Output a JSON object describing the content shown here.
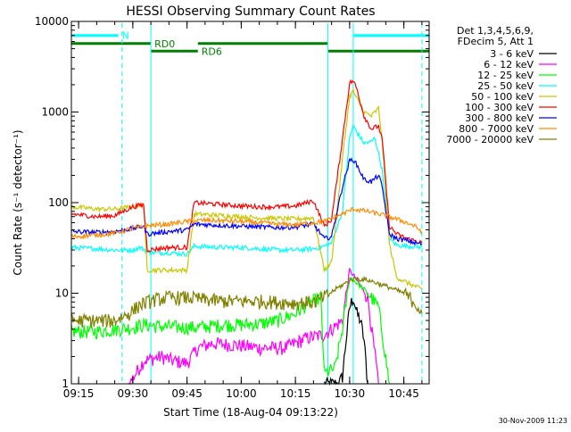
{
  "chart_data": {
    "type": "line",
    "title": "HESSI Observing Summary Count Rates",
    "xlabel": "Start Time (18-Aug-04 09:13:22)",
    "ylabel": "Count Rate (s⁻¹ detector⁻¹)",
    "y_scale": "log",
    "ylim": [
      1,
      10000
    ],
    "xlim": [
      "09:13",
      "10:52"
    ],
    "grid": false,
    "x_ticks": [
      "09:15",
      "09:30",
      "09:45",
      "10:00",
      "10:15",
      "10:30",
      "10:45"
    ],
    "y_ticks": [
      "1",
      "10",
      "100",
      "1000",
      "10000"
    ],
    "legend_header": [
      "Det 1,3,4,5,6,9,",
      "FDecim 5, Att 1"
    ],
    "legend_position": "right",
    "series": [
      {
        "name": "3 - 6 keV",
        "color": "#000000",
        "x": [
          "10:23",
          "10:27",
          "10:28",
          "10:29",
          "10:30",
          "10:31",
          "10:32",
          "10:33",
          "10:34",
          "10:35"
        ],
        "y": [
          1,
          1,
          1.2,
          3,
          7,
          9,
          6,
          5,
          3,
          1
        ]
      },
      {
        "name": "6 - 12 keV",
        "color": "#ff00ff",
        "x": [
          "09:29",
          "09:33",
          "09:38",
          "09:41",
          "09:45",
          "09:48",
          "09:52",
          "09:58",
          "10:05",
          "10:12",
          "10:18",
          "10:23",
          "10:28",
          "10:30",
          "10:32",
          "10:35",
          "10:38"
        ],
        "y": [
          1,
          1.8,
          2,
          1.8,
          1.7,
          2.5,
          2.8,
          2.7,
          2.5,
          2.5,
          3.2,
          3.5,
          5,
          18,
          14,
          9,
          1
        ]
      },
      {
        "name": "12 - 25 keV",
        "color": "#00ff00",
        "x": [
          "09:13",
          "09:20",
          "09:25",
          "09:30",
          "09:33",
          "09:38",
          "09:45",
          "09:48",
          "09:55",
          "10:00",
          "10:05",
          "10:10",
          "10:15",
          "10:18",
          "10:22",
          "10:23",
          "10:26",
          "10:28",
          "10:30",
          "10:32",
          "10:34",
          "10:36",
          "10:38",
          "10:41"
        ],
        "y": [
          3.8,
          3.8,
          4,
          4.2,
          4.5,
          4.3,
          4.2,
          4.2,
          4.5,
          4.5,
          4.6,
          5,
          6,
          7.5,
          9,
          1.3,
          1.5,
          4,
          15,
          13,
          11,
          9,
          7,
          1
        ]
      },
      {
        "name": "25 - 50 keV",
        "color": "#00ffff",
        "x": [
          "09:13",
          "09:20",
          "09:25",
          "09:30",
          "09:32",
          "09:35",
          "09:40",
          "09:45",
          "09:47",
          "09:55",
          "10:00",
          "10:05",
          "10:10",
          "10:15",
          "10:20",
          "10:23",
          "10:25",
          "10:28",
          "10:30",
          "10:31",
          "10:32",
          "10:34",
          "10:36",
          "10:37",
          "10:39",
          "10:41",
          "10:43",
          "10:46",
          "10:48",
          "10:50"
        ],
        "y": [
          32,
          31,
          30,
          30,
          32,
          28,
          28,
          27,
          33,
          32,
          32,
          31,
          30,
          30,
          31,
          33,
          36,
          80,
          520,
          700,
          600,
          450,
          470,
          520,
          230,
          40,
          34,
          33,
          33,
          32
        ]
      },
      {
        "name": "50 - 100 keV",
        "color": "#c8c800",
        "x": [
          "09:13",
          "09:20",
          "09:25",
          "09:30",
          "09:33",
          "09:34",
          "09:40",
          "09:45",
          "09:47",
          "09:55",
          "10:00",
          "10:05",
          "10:10",
          "10:15",
          "10:20",
          "10:23",
          "10:25",
          "10:28",
          "10:30",
          "10:31",
          "10:32",
          "10:34",
          "10:36",
          "10:38",
          "10:39",
          "10:41",
          "10:43",
          "10:46",
          "10:48",
          "10:50"
        ],
        "y": [
          90,
          85,
          85,
          90,
          95,
          18,
          18,
          18,
          75,
          72,
          70,
          68,
          67,
          66,
          68,
          18,
          22,
          300,
          1500,
          1700,
          1400,
          1000,
          900,
          1100,
          500,
          35,
          15,
          13,
          12,
          11
        ]
      },
      {
        "name": "100 - 300 keV",
        "color": "#ff0000",
        "x": [
          "09:13",
          "09:20",
          "09:25",
          "09:30",
          "09:33",
          "09:34",
          "09:40",
          "09:45",
          "09:47",
          "09:55",
          "10:00",
          "10:05",
          "10:10",
          "10:15",
          "10:20",
          "10:23",
          "10:25",
          "10:28",
          "10:30",
          "10:31",
          "10:32",
          "10:34",
          "10:36",
          "10:38",
          "10:39",
          "10:41",
          "10:43",
          "10:46",
          "10:48",
          "10:50"
        ],
        "y": [
          75,
          70,
          72,
          90,
          95,
          30,
          32,
          32,
          100,
          95,
          92,
          90,
          90,
          92,
          105,
          55,
          65,
          500,
          2100,
          2200,
          1800,
          900,
          650,
          700,
          500,
          55,
          45,
          40,
          38,
          36
        ]
      },
      {
        "name": "300 - 800 keV",
        "color": "#0000ff",
        "x": [
          "09:13",
          "09:20",
          "09:25",
          "09:30",
          "09:33",
          "09:34",
          "09:40",
          "09:45",
          "09:47",
          "09:55",
          "10:00",
          "10:05",
          "10:10",
          "10:15",
          "10:20",
          "10:23",
          "10:25",
          "10:28",
          "10:30",
          "10:31",
          "10:32",
          "10:34",
          "10:36",
          "10:38",
          "10:39",
          "10:41",
          "10:43",
          "10:46",
          "10:48",
          "10:50"
        ],
        "y": [
          48,
          47,
          48,
          52,
          55,
          45,
          48,
          50,
          58,
          56,
          55,
          54,
          53,
          54,
          58,
          40,
          42,
          150,
          290,
          300,
          260,
          180,
          170,
          200,
          150,
          45,
          40,
          38,
          36,
          35
        ]
      },
      {
        "name": "800 - 7000 keV",
        "color": "#ff8c00",
        "x": [
          "09:13",
          "09:20",
          "09:25",
          "09:30",
          "09:35",
          "09:40",
          "09:45",
          "09:50",
          "09:55",
          "10:00",
          "10:05",
          "10:10",
          "10:15",
          "10:20",
          "10:23",
          "10:28",
          "10:31",
          "10:35",
          "10:40",
          "10:45",
          "10:48",
          "10:50"
        ],
        "y": [
          42,
          44,
          46,
          52,
          56,
          58,
          62,
          64,
          63,
          62,
          60,
          58,
          57,
          60,
          62,
          75,
          85,
          80,
          72,
          62,
          55,
          48
        ]
      },
      {
        "name": "7000 - 20000 keV",
        "color": "#808000",
        "x": [
          "09:13",
          "09:20",
          "09:25",
          "09:29",
          "09:32",
          "09:36",
          "09:40",
          "09:45",
          "09:50",
          "09:55",
          "10:00",
          "10:05",
          "10:10",
          "10:15",
          "10:20",
          "10:23",
          "10:26",
          "10:29",
          "10:31",
          "10:35",
          "10:40",
          "10:45",
          "10:48",
          "10:50"
        ],
        "y": [
          5,
          5,
          5,
          6,
          7.5,
          8.5,
          9,
          9,
          8.5,
          8.2,
          8.2,
          8.2,
          8,
          7.8,
          8,
          9,
          11,
          13,
          14.5,
          14,
          12,
          10,
          8,
          6
        ]
      }
    ],
    "flags": [
      {
        "label": "N",
        "color": "#00ffff",
        "text_color": "#00ffff",
        "level": 7000,
        "segments": [
          [
            "09:13",
            "09:26"
          ],
          [
            "10:31",
            "10:52"
          ]
        ]
      },
      {
        "label": "RD0",
        "color": "#008000",
        "text_color": "#008000",
        "level": 5700,
        "segments": [
          [
            "09:13",
            "09:35"
          ],
          [
            "09:48",
            "10:24"
          ]
        ]
      },
      {
        "label": "RD6",
        "color": "#008000",
        "text_color": "#008000",
        "level": 4700,
        "segments": [
          [
            "09:35",
            "09:48"
          ],
          [
            "10:24",
            "10:52"
          ]
        ]
      }
    ],
    "vertical_markers": [
      {
        "x": "09:13",
        "color": "#00ffff",
        "style": "solid"
      },
      {
        "x": "09:27",
        "color": "#00ffff",
        "style": "dashed"
      },
      {
        "x": "09:35",
        "color": "#00ffff",
        "style": "solid"
      },
      {
        "x": "10:24",
        "color": "#00ffff",
        "style": "solid"
      },
      {
        "x": "10:31",
        "color": "#00ffff",
        "style": "solid"
      },
      {
        "x": "10:50",
        "color": "#00ffff",
        "style": "dashed"
      }
    ],
    "footer_date": "30-Nov-2009 11:23"
  }
}
